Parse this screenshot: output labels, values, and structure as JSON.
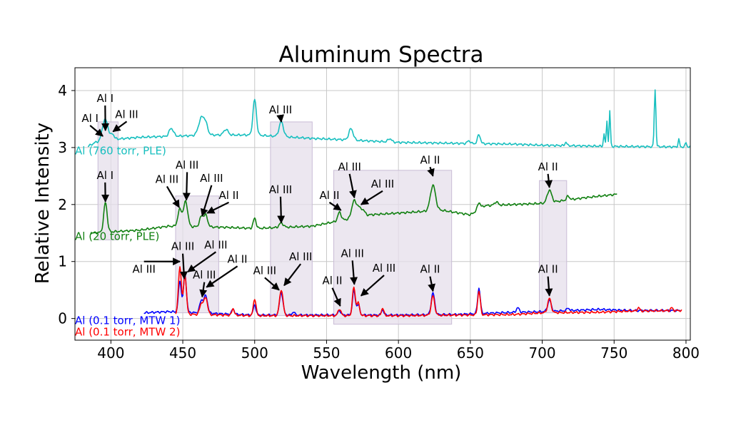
{
  "chart_data": {
    "type": "line",
    "title": "Aluminum Spectra",
    "xlabel": "Wavelength (nm)",
    "ylabel": "Relative Intensity",
    "xlim": [
      375,
      803
    ],
    "ylim": [
      -0.38,
      4.4
    ],
    "xticks": [
      400,
      450,
      500,
      550,
      600,
      650,
      700,
      750,
      800
    ],
    "yticks": [
      0,
      1,
      2,
      3,
      4
    ],
    "grid": true,
    "colors": {
      "cyan": "#17bfbf",
      "green": "#118011",
      "blue": "#0000ff",
      "red": "#ff0000",
      "band": "#e6dfeb",
      "band_edge": "#c9bcd6"
    },
    "bands": [
      {
        "x0": 391,
        "x1": 405,
        "y0": 1.38,
        "y1": 3.45
      },
      {
        "x0": 445,
        "x1": 475,
        "y0": 0.1,
        "y1": 2.15
      },
      {
        "x0": 511,
        "x1": 540,
        "y0": 0.05,
        "y1": 3.45
      },
      {
        "x0": 555,
        "x1": 637,
        "y0": -0.1,
        "y1": 2.6
      },
      {
        "x0": 698,
        "x1": 717,
        "y0": 0.1,
        "y1": 2.42
      }
    ],
    "series": [
      {
        "name": "Al (760 torr, PLE)",
        "color": "#17bfbf",
        "baseline": 3.0,
        "x0": 384,
        "x1": 803,
        "base_points": [
          [
            384,
            3.02
          ],
          [
            390,
            3.1
          ],
          [
            400,
            3.14
          ],
          [
            420,
            3.18
          ],
          [
            445,
            3.2
          ],
          [
            470,
            3.22
          ],
          [
            500,
            3.22
          ],
          [
            540,
            3.16
          ],
          [
            560,
            3.14
          ],
          [
            600,
            3.09
          ],
          [
            650,
            3.07
          ],
          [
            680,
            3.06
          ],
          [
            700,
            3.04
          ],
          [
            750,
            3.02
          ],
          [
            803,
            3.01
          ]
        ],
        "peaks": [
          [
            394.4,
            0.18,
            1.2
          ],
          [
            396.2,
            0.28,
            1.2
          ],
          [
            398,
            0.14,
            1.0
          ],
          [
            401,
            0.1,
            1.2
          ],
          [
            442,
            0.14,
            1.5
          ],
          [
            463,
            0.3,
            2.0
          ],
          [
            466,
            0.15,
            1.5
          ],
          [
            480,
            0.1,
            1.5
          ],
          [
            500,
            0.62,
            1.2
          ],
          [
            518.5,
            0.26,
            1.5
          ],
          [
            567,
            0.2,
            1.5
          ],
          [
            594,
            0.06,
            1.2
          ],
          [
            649,
            0.05,
            1.0
          ],
          [
            656,
            0.16,
            1.0
          ],
          [
            716.5,
            0.07,
            0.6
          ],
          [
            743,
            0.22,
            0.45
          ],
          [
            745,
            0.45,
            0.45
          ],
          [
            747,
            0.62,
            0.45
          ],
          [
            778.5,
            1.0,
            0.55
          ],
          [
            795,
            0.13,
            0.5
          ],
          [
            800,
            0.08,
            0.5
          ]
        ]
      },
      {
        "name": "Al (20 torr, PLE)",
        "color": "#118011",
        "baseline": 1.5,
        "x0": 386,
        "x1": 752,
        "base_points": [
          [
            386,
            1.5
          ],
          [
            420,
            1.55
          ],
          [
            440,
            1.62
          ],
          [
            480,
            1.6
          ],
          [
            500,
            1.58
          ],
          [
            540,
            1.62
          ],
          [
            560,
            1.72
          ],
          [
            580,
            1.82
          ],
          [
            600,
            1.85
          ],
          [
            630,
            1.9
          ],
          [
            650,
            1.82
          ],
          [
            660,
            1.98
          ],
          [
            700,
            2.02
          ],
          [
            730,
            2.12
          ],
          [
            752,
            2.18
          ]
        ],
        "peaks": [
          [
            396.2,
            0.52,
            1.2
          ],
          [
            448,
            0.3,
            1.4
          ],
          [
            452,
            0.44,
            1.4
          ],
          [
            463,
            0.18,
            1.3
          ],
          [
            466,
            0.2,
            1.3
          ],
          [
            500,
            0.18,
            1.0
          ],
          [
            518.5,
            0.08,
            1.4
          ],
          [
            559,
            0.15,
            1.2
          ],
          [
            569,
            0.3,
            1.5
          ],
          [
            572,
            0.15,
            1.2
          ],
          [
            575,
            0.12,
            1.5
          ],
          [
            624,
            0.45,
            1.8
          ],
          [
            656,
            0.12,
            1.0
          ],
          [
            668,
            0.06,
            1.2
          ],
          [
            705,
            0.22,
            1.5
          ],
          [
            718,
            0.07,
            1.0
          ]
        ]
      },
      {
        "name": "Al (0.1 torr, MTW 1)",
        "color": "#0000ff",
        "baseline": 0.0,
        "x0": 423,
        "x1": 796,
        "base_points": [
          [
            423,
            0.1
          ],
          [
            440,
            0.12
          ],
          [
            460,
            0.1
          ],
          [
            500,
            0.06
          ],
          [
            550,
            0.06
          ],
          [
            600,
            0.06
          ],
          [
            640,
            0.07
          ],
          [
            670,
            0.1
          ],
          [
            700,
            0.12
          ],
          [
            740,
            0.16
          ],
          [
            760,
            0.14
          ],
          [
            796,
            0.14
          ]
        ],
        "peaks": [
          [
            448,
            0.55,
            1.0
          ],
          [
            451.5,
            0.68,
            1.0
          ],
          [
            463,
            0.22,
            1.2
          ],
          [
            466,
            0.3,
            1.2
          ],
          [
            485,
            0.1,
            0.8
          ],
          [
            500,
            0.18,
            0.9
          ],
          [
            518.5,
            0.4,
            1.2
          ],
          [
            527,
            0.06,
            0.8
          ],
          [
            559,
            0.08,
            1.0
          ],
          [
            569,
            0.43,
            1.0
          ],
          [
            572,
            0.18,
            1.0
          ],
          [
            589,
            0.1,
            0.8
          ],
          [
            624,
            0.38,
            1.2
          ],
          [
            656,
            0.45,
            0.9
          ],
          [
            683,
            0.08,
            1.0
          ],
          [
            705,
            0.2,
            1.2
          ],
          [
            718,
            0.05,
            0.8
          ]
        ]
      },
      {
        "name": "Al (0.1 torr, MTW 2)",
        "color": "#ff0000",
        "baseline": -0.18,
        "x0": 445,
        "x1": 797,
        "base_points": [
          [
            445,
            0.08
          ],
          [
            460,
            0.07
          ],
          [
            500,
            0.05
          ],
          [
            550,
            0.05
          ],
          [
            600,
            0.05
          ],
          [
            640,
            0.06
          ],
          [
            680,
            0.07
          ],
          [
            700,
            0.1
          ],
          [
            740,
            0.11
          ],
          [
            760,
            0.13
          ],
          [
            797,
            0.14
          ]
        ],
        "peaks": [
          [
            448,
            0.84,
            1.0
          ],
          [
            451.5,
            0.7,
            1.0
          ],
          [
            463,
            0.2,
            1.2
          ],
          [
            466,
            0.3,
            1.2
          ],
          [
            485,
            0.12,
            0.8
          ],
          [
            500,
            0.3,
            0.9
          ],
          [
            518.5,
            0.46,
            1.2
          ],
          [
            559,
            0.12,
            1.0
          ],
          [
            569,
            0.5,
            1.0
          ],
          [
            572,
            0.22,
            1.0
          ],
          [
            589,
            0.14,
            0.8
          ],
          [
            624,
            0.34,
            1.2
          ],
          [
            656,
            0.42,
            0.9
          ],
          [
            705,
            0.25,
            1.2
          ],
          [
            767,
            0.06,
            0.8
          ],
          [
            790,
            0.05,
            0.8
          ]
        ]
      }
    ],
    "series_labels": [
      {
        "text": "Al (760 torr, PLE)",
        "color": "#17bfbf",
        "x": 375,
        "y": 2.88
      },
      {
        "text": "Al (20 torr, PLE)",
        "color": "#118011",
        "x": 375,
        "y": 1.38
      },
      {
        "text": "Al (0.1 torr, MTW 1)",
        "color": "#0000ff",
        "x": 375,
        "y": -0.1
      },
      {
        "text": "Al (0.1 torr, MTW 2)",
        "color": "#ff0000",
        "x": 375,
        "y": -0.3
      }
    ],
    "annotations": [
      {
        "label": "Al I",
        "lx": 385.5,
        "ly": 3.45,
        "ax": 394.4,
        "ay": 3.2
      },
      {
        "label": "Al I",
        "lx": 396,
        "ly": 3.8,
        "ax": 396.2,
        "ay": 3.3
      },
      {
        "label": "Al III",
        "lx": 411,
        "ly": 3.52,
        "ax": 401.5,
        "ay": 3.28
      },
      {
        "label": "Al III",
        "lx": 518,
        "ly": 3.6,
        "ax": 518.5,
        "ay": 3.45
      },
      {
        "label": "Al I",
        "lx": 396,
        "ly": 2.45,
        "ax": 396.2,
        "ay": 2.05
      },
      {
        "label": "Al III",
        "lx": 439,
        "ly": 2.38,
        "ax": 447.5,
        "ay": 1.95
      },
      {
        "label": "Al III",
        "lx": 453,
        "ly": 2.63,
        "ax": 452.5,
        "ay": 2.08
      },
      {
        "label": "Al III",
        "lx": 470,
        "ly": 2.4,
        "ax": 463.5,
        "ay": 1.8
      },
      {
        "label": "Al II",
        "lx": 482,
        "ly": 2.1,
        "ax": 467,
        "ay": 1.85
      },
      {
        "label": "Al III",
        "lx": 518,
        "ly": 2.2,
        "ax": 518.5,
        "ay": 1.68
      },
      {
        "label": "Al II",
        "lx": 552,
        "ly": 2.1,
        "ax": 560,
        "ay": 1.9
      },
      {
        "label": "Al III",
        "lx": 566,
        "ly": 2.6,
        "ax": 569.3,
        "ay": 2.12
      },
      {
        "label": "Al III",
        "lx": 589,
        "ly": 2.3,
        "ax": 574,
        "ay": 2.0
      },
      {
        "label": "Al II",
        "lx": 622,
        "ly": 2.72,
        "ax": 624,
        "ay": 2.5
      },
      {
        "label": "Al II",
        "lx": 704,
        "ly": 2.6,
        "ax": 705,
        "ay": 2.3
      },
      {
        "label": "Al III",
        "lx": 423,
        "ly": 0.8,
        "ax": 448,
        "ay": 1.0
      },
      {
        "label": "Al III",
        "lx": 450,
        "ly": 1.2,
        "ax": 451,
        "ay": 0.7
      },
      {
        "label": "Al III",
        "lx": 473,
        "ly": 1.23,
        "ax": 453.5,
        "ay": 0.82
      },
      {
        "label": "Al III",
        "lx": 465,
        "ly": 0.7,
        "ax": 463.5,
        "ay": 0.38
      },
      {
        "label": "Al II",
        "lx": 488,
        "ly": 0.98,
        "ax": 466.5,
        "ay": 0.55
      },
      {
        "label": "Al III",
        "lx": 507,
        "ly": 0.78,
        "ax": 517,
        "ay": 0.5
      },
      {
        "label": "Al III",
        "lx": 532,
        "ly": 1.02,
        "ax": 520.5,
        "ay": 0.58
      },
      {
        "label": "Al II",
        "lx": 554,
        "ly": 0.6,
        "ax": 559.5,
        "ay": 0.22
      },
      {
        "label": "Al III",
        "lx": 568,
        "ly": 1.08,
        "ax": 569.3,
        "ay": 0.6
      },
      {
        "label": "Al III",
        "lx": 590,
        "ly": 0.82,
        "ax": 574,
        "ay": 0.4
      },
      {
        "label": "Al II",
        "lx": 622,
        "ly": 0.8,
        "ax": 624,
        "ay": 0.48
      },
      {
        "label": "Al II",
        "lx": 704,
        "ly": 0.8,
        "ax": 705,
        "ay": 0.4
      }
    ]
  }
}
